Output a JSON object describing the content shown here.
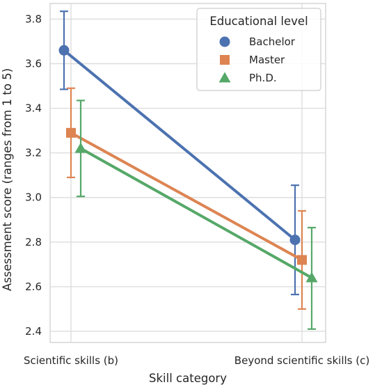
{
  "chart_data": {
    "type": "line",
    "title": "",
    "xlabel": "Skill category",
    "ylabel": "Assessment score (ranges from 1 to 5)",
    "categories": [
      "Scientific skills (b)",
      "Beyond scientific skills (c)"
    ],
    "ylim": [
      2.35,
      3.87
    ],
    "yticks": [
      "2.4",
      "2.6",
      "2.8",
      "3.0",
      "3.2",
      "3.4",
      "3.6",
      "3.8"
    ],
    "grid": true,
    "legend": {
      "title": "Educational level",
      "placement": "top-right"
    },
    "series": [
      {
        "name": "Bachelor",
        "color": "#4c72b0",
        "marker": "circle",
        "values": [
          3.66,
          2.81
        ],
        "err_low": [
          3.485,
          2.565
        ],
        "err_high": [
          3.835,
          3.055
        ]
      },
      {
        "name": "Master",
        "color": "#dd8452",
        "marker": "square",
        "values": [
          3.29,
          2.72
        ],
        "err_low": [
          3.09,
          2.5
        ],
        "err_high": [
          3.49,
          2.94
        ]
      },
      {
        "name": "Ph.D.",
        "color": "#55a868",
        "marker": "triangle",
        "values": [
          3.22,
          2.64
        ],
        "err_low": [
          3.005,
          2.41
        ],
        "err_high": [
          3.435,
          2.865
        ]
      }
    ]
  }
}
